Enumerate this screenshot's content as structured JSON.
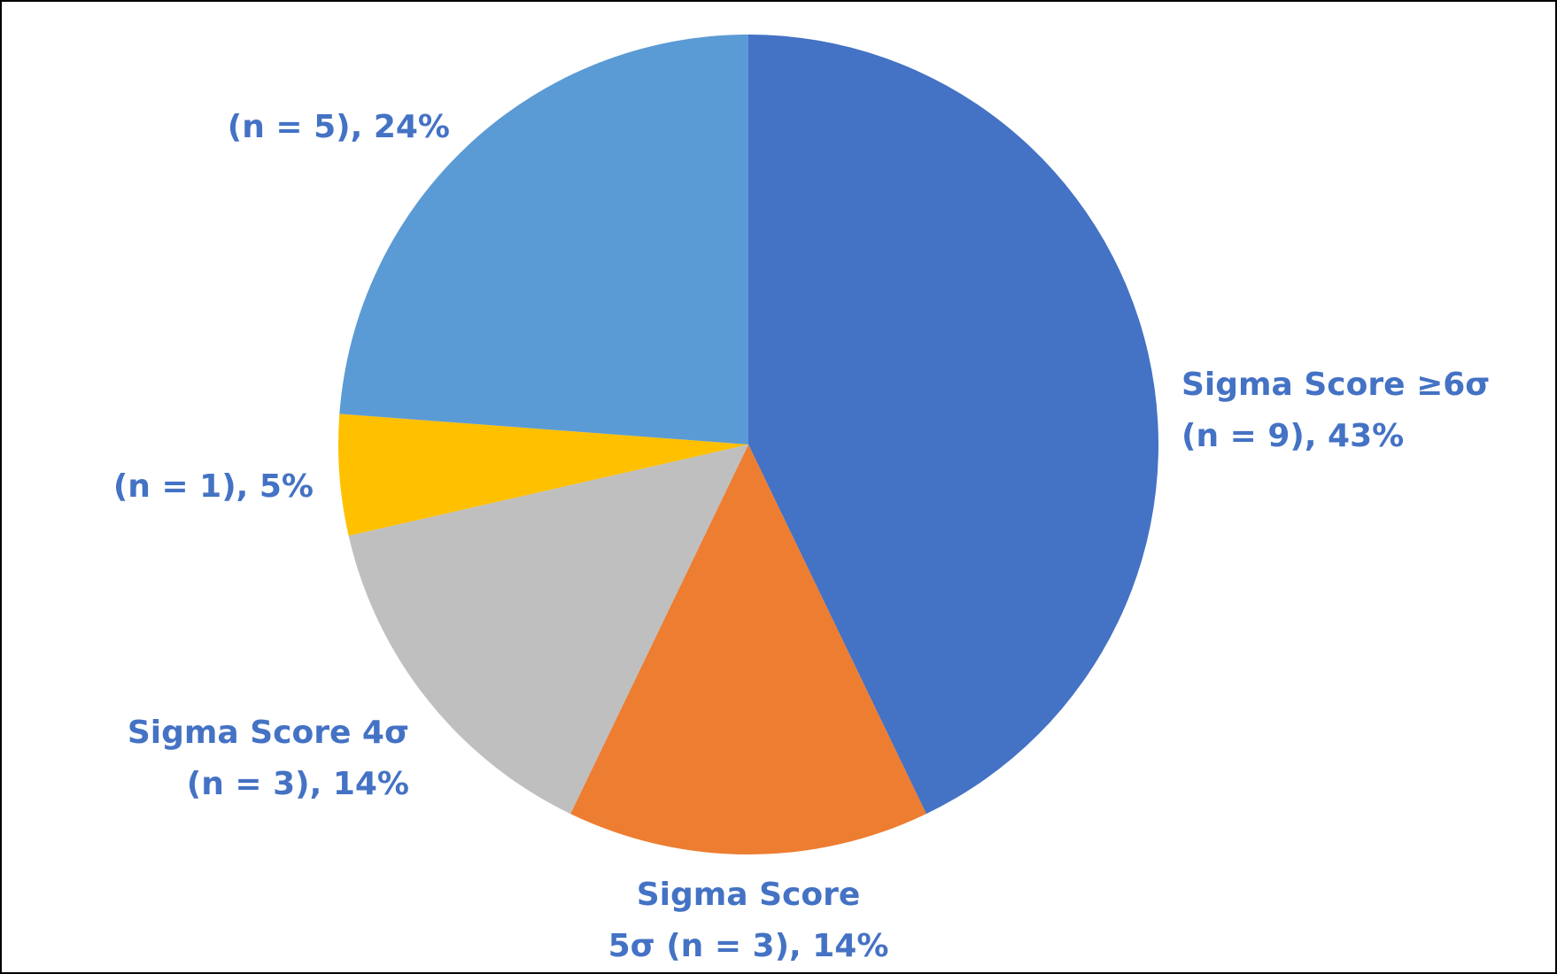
{
  "chart_data": {
    "type": "pie",
    "title": "",
    "slices": [
      {
        "lines": [
          "Sigma Score ≥6σ",
          "(n = 9), 43%"
        ],
        "n": 9,
        "percent": 43,
        "color": "#4472C4",
        "anchor": "start"
      },
      {
        "lines": [
          "Sigma Score",
          "5σ (n = 3), 14%"
        ],
        "n": 3,
        "percent": 14,
        "color": "#ED7D31",
        "anchor": "middle"
      },
      {
        "lines": [
          "Sigma Score 4σ",
          "(n = 3), 14%"
        ],
        "n": 3,
        "percent": 14,
        "color": "#BFBFBF",
        "anchor": "end"
      },
      {
        "lines": [
          "(n = 1), 5%"
        ],
        "n": 1,
        "percent": 5,
        "color": "#FFC000",
        "anchor": "end"
      },
      {
        "lines": [
          "(n = 5), 24%"
        ],
        "n": 5,
        "percent": 24,
        "color": "#5B9BD5",
        "anchor": "end"
      }
    ],
    "start_angle_deg": 0,
    "direction": "clockwise",
    "label_color": "#4472C4",
    "legend": "none"
  }
}
